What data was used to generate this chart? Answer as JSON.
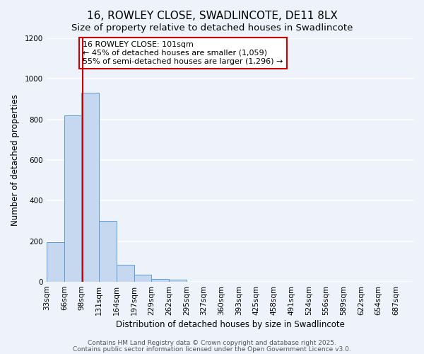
{
  "title": "16, ROWLEY CLOSE, SWADLINCOTE, DE11 8LX",
  "subtitle": "Size of property relative to detached houses in Swadlincote",
  "xlabel": "Distribution of detached houses by size in Swadlincote",
  "ylabel": "Number of detached properties",
  "bar_values": [
    195,
    820,
    930,
    300,
    85,
    35,
    15,
    10,
    0,
    0,
    0,
    0,
    0,
    0,
    0,
    0,
    0,
    0,
    0,
    0
  ],
  "bin_labels": [
    "33sqm",
    "66sqm",
    "98sqm",
    "131sqm",
    "164sqm",
    "197sqm",
    "229sqm",
    "262sqm",
    "295sqm",
    "327sqm",
    "360sqm",
    "393sqm",
    "425sqm",
    "458sqm",
    "491sqm",
    "524sqm",
    "556sqm",
    "589sqm",
    "622sqm",
    "654sqm",
    "687sqm"
  ],
  "bar_color": "#c5d8f0",
  "bar_edge_color": "#5b9bd5",
  "vline_x": 101,
  "vline_color": "#cc0000",
  "bin_edges": [
    33,
    66,
    98,
    131,
    164,
    197,
    229,
    262,
    295,
    327,
    360,
    393,
    425,
    458,
    491,
    524,
    556,
    589,
    622,
    654,
    687
  ],
  "ylim": [
    0,
    1200
  ],
  "yticks": [
    0,
    200,
    400,
    600,
    800,
    1000,
    1200
  ],
  "annotation_text": "16 ROWLEY CLOSE: 101sqm\n← 45% of detached houses are smaller (1,059)\n55% of semi-detached houses are larger (1,296) →",
  "annotation_box_color": "#ffffff",
  "annotation_box_edge": "#cc0000",
  "bg_color": "#eef2fb",
  "grid_color": "#ffffff",
  "footer_line1": "Contains HM Land Registry data © Crown copyright and database right 2025.",
  "footer_line2": "Contains public sector information licensed under the Open Government Licence v3.0.",
  "title_fontsize": 11,
  "subtitle_fontsize": 9.5,
  "axis_label_fontsize": 8.5,
  "tick_fontsize": 7.5,
  "annotation_fontsize": 8,
  "footer_fontsize": 6.5
}
